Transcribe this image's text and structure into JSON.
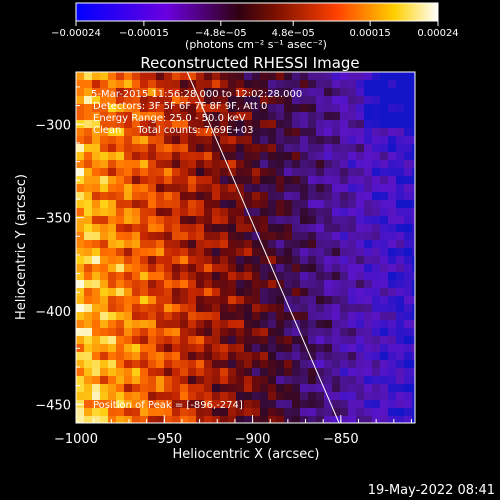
{
  "chart_data": {
    "type": "heatmap",
    "title": "Reconstructed RHESSI Image",
    "xlabel": "Heliocentric X (arcsec)",
    "ylabel": "Heliocentric Y (arcsec)",
    "xlim": [
      -1000,
      -808
    ],
    "ylim": [
      -460,
      -272
    ],
    "x_ticks": [
      -1000,
      -950,
      -900,
      -850
    ],
    "x_tick_labels": [
      "−1000",
      "−950",
      "−900",
      "−850"
    ],
    "y_ticks": [
      -300,
      -350,
      -400,
      -450
    ],
    "y_tick_labels": [
      "−300",
      "−350",
      "−400",
      "−450"
    ],
    "colorbar": {
      "range": [
        -0.00024,
        0.00024
      ],
      "ticks": [
        -0.00024,
        -0.00015,
        -4.8e-05,
        4.8e-05,
        0.00015,
        0.00024
      ],
      "tick_labels": [
        "−0.00024",
        "−0.00015",
        "−4.8e−05",
        "4.8e−05",
        "0.00015",
        "0.00024"
      ],
      "unit_label": "(photons cm⁻² s⁻¹ asec⁻²)"
    },
    "annotations": {
      "time_range": "5-Mar-2015 11:56:28.000 to 12:02:28.000",
      "detectors": "Detectors: 3F 5F 6F 7F 8F 9F, Att 0",
      "energy_range": "Energy Range: 25.0 - 50.0 keV",
      "method_counts": "Clean     Total counts: 7.69E+03",
      "peak_position": "Position of Peak = [-896,-274]"
    },
    "limb_line": {
      "x": [
        -937,
        -851
      ],
      "y": [
        -272,
        -460
      ]
    },
    "peak": [
      -896,
      -274
    ],
    "grid": false
  },
  "footer": {
    "timestamp": "19-May-2022 08:41"
  }
}
